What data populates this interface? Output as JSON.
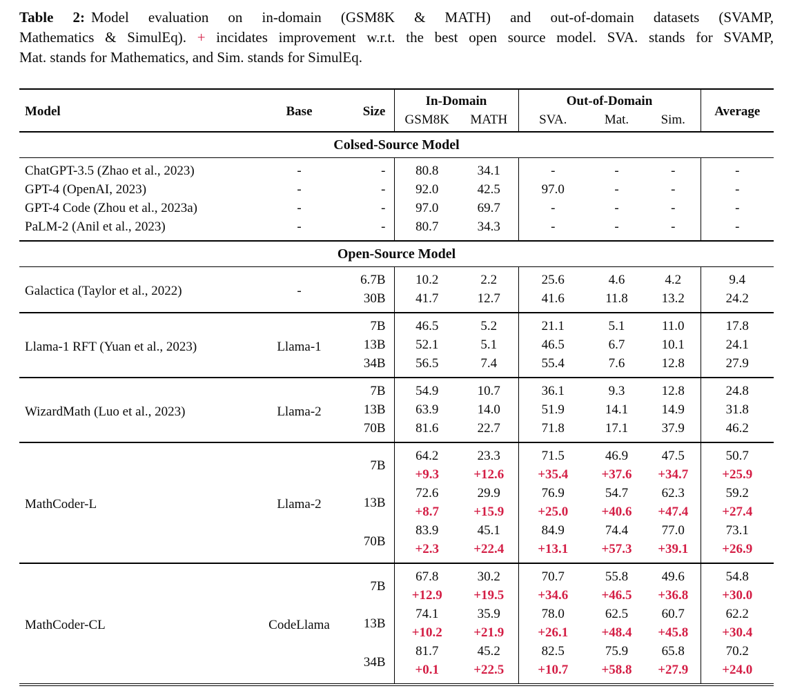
{
  "colors": {
    "delta_red": "#d41e45",
    "text": "#0b0b0b",
    "rule": "#000000"
  },
  "caption": {
    "label": "Table 2:",
    "lines": [
      {
        "pre": "Model evaluation on in-domain (GSM8K & MATH) and out-of-domain datasets (SVAMP,"
      },
      {
        "pre": "Mathematics & SimulEq).",
        "plus": "+",
        "post": "incidates improvement w.r.t. the best open source model. SVA. stands for SVAMP,"
      },
      {
        "pre": "Mat. stands for Mathematics, and Sim. stands for SimulEq."
      }
    ]
  },
  "table": {
    "header": {
      "model": "Model",
      "base": "Base",
      "size": "Size",
      "in_domain": "In-Domain",
      "out_of_domain": "Out-of-Domain",
      "average": "Average",
      "in_domain_cols": [
        "GSM8K",
        "MATH"
      ],
      "out_domain_cols": [
        "SVA.",
        "Mat.",
        "Sim."
      ]
    },
    "sections": [
      {
        "title": "Colsed-Source Model",
        "groups": [
          {
            "model": "ChatGPT-3.5 (Zhao et al., 2023)",
            "base": "-",
            "rows": [
              {
                "size": "-",
                "values": [
                  "80.8",
                  "34.1",
                  "-",
                  "-",
                  "-",
                  "-"
                ]
              }
            ]
          },
          {
            "model": "GPT-4 (OpenAI, 2023)",
            "base": "-",
            "rows": [
              {
                "size": "-",
                "values": [
                  "92.0",
                  "42.5",
                  "97.0",
                  "-",
                  "-",
                  "-"
                ]
              }
            ]
          },
          {
            "model": "GPT-4 Code (Zhou et al., 2023a)",
            "base": "-",
            "rows": [
              {
                "size": "-",
                "values": [
                  "97.0",
                  "69.7",
                  "-",
                  "-",
                  "-",
                  "-"
                ]
              }
            ]
          },
          {
            "model": "PaLM-2 (Anil et al., 2023)",
            "base": "-",
            "rows": [
              {
                "size": "-",
                "values": [
                  "80.7",
                  "34.3",
                  "-",
                  "-",
                  "-",
                  "-"
                ]
              }
            ]
          }
        ]
      },
      {
        "title": "Open-Source Model",
        "groups": [
          {
            "model": "Galactica (Taylor et al., 2022)",
            "base": "-",
            "rows": [
              {
                "size": "6.7B",
                "values": [
                  "10.2",
                  "2.2",
                  "25.6",
                  "4.6",
                  "4.2",
                  "9.4"
                ]
              },
              {
                "size": "30B",
                "values": [
                  "41.7",
                  "12.7",
                  "41.6",
                  "11.8",
                  "13.2",
                  "24.2"
                ]
              }
            ]
          },
          {
            "model": "Llama-1 RFT (Yuan et al., 2023)",
            "base": "Llama-1",
            "rows": [
              {
                "size": "7B",
                "values": [
                  "46.5",
                  "5.2",
                  "21.1",
                  "5.1",
                  "11.0",
                  "17.8"
                ]
              },
              {
                "size": "13B",
                "values": [
                  "52.1",
                  "5.1",
                  "46.5",
                  "6.7",
                  "10.1",
                  "24.1"
                ]
              },
              {
                "size": "34B",
                "values": [
                  "56.5",
                  "7.4",
                  "55.4",
                  "7.6",
                  "12.8",
                  "27.9"
                ]
              }
            ]
          },
          {
            "model": "WizardMath (Luo et al., 2023)",
            "base": "Llama-2",
            "rows": [
              {
                "size": "7B",
                "values": [
                  "54.9",
                  "10.7",
                  "36.1",
                  "9.3",
                  "12.8",
                  "24.8"
                ]
              },
              {
                "size": "13B",
                "values": [
                  "63.9",
                  "14.0",
                  "51.9",
                  "14.1",
                  "14.9",
                  "31.8"
                ]
              },
              {
                "size": "70B",
                "values": [
                  "81.6",
                  "22.7",
                  "71.8",
                  "17.1",
                  "37.9",
                  "46.2"
                ]
              }
            ]
          },
          {
            "model": "MathCoder-L",
            "base": "Llama-2",
            "rows": [
              {
                "size": "7B",
                "values": [
                  "64.2",
                  "23.3",
                  "71.5",
                  "46.9",
                  "47.5",
                  "50.7"
                ],
                "deltas": [
                  "+9.3",
                  "+12.6",
                  "+35.4",
                  "+37.6",
                  "+34.7",
                  "+25.9"
                ]
              },
              {
                "size": "13B",
                "values": [
                  "72.6",
                  "29.9",
                  "76.9",
                  "54.7",
                  "62.3",
                  "59.2"
                ],
                "deltas": [
                  "+8.7",
                  "+15.9",
                  "+25.0",
                  "+40.6",
                  "+47.4",
                  "+27.4"
                ]
              },
              {
                "size": "70B",
                "values": [
                  "83.9",
                  "45.1",
                  "84.9",
                  "74.4",
                  "77.0",
                  "73.1"
                ],
                "deltas": [
                  "+2.3",
                  "+22.4",
                  "+13.1",
                  "+57.3",
                  "+39.1",
                  "+26.9"
                ]
              }
            ]
          },
          {
            "model": "MathCoder-CL",
            "base": "CodeLlama",
            "rows": [
              {
                "size": "7B",
                "values": [
                  "67.8",
                  "30.2",
                  "70.7",
                  "55.8",
                  "49.6",
                  "54.8"
                ],
                "deltas": [
                  "+12.9",
                  "+19.5",
                  "+34.6",
                  "+46.5",
                  "+36.8",
                  "+30.0"
                ]
              },
              {
                "size": "13B",
                "values": [
                  "74.1",
                  "35.9",
                  "78.0",
                  "62.5",
                  "60.7",
                  "62.2"
                ],
                "deltas": [
                  "+10.2",
                  "+21.9",
                  "+26.1",
                  "+48.4",
                  "+45.8",
                  "+30.4"
                ]
              },
              {
                "size": "34B",
                "values": [
                  "81.7",
                  "45.2",
                  "82.5",
                  "75.9",
                  "65.8",
                  "70.2"
                ],
                "deltas": [
                  "+0.1",
                  "+22.5",
                  "+10.7",
                  "+58.8",
                  "+27.9",
                  "+24.0"
                ]
              }
            ]
          }
        ]
      }
    ]
  }
}
